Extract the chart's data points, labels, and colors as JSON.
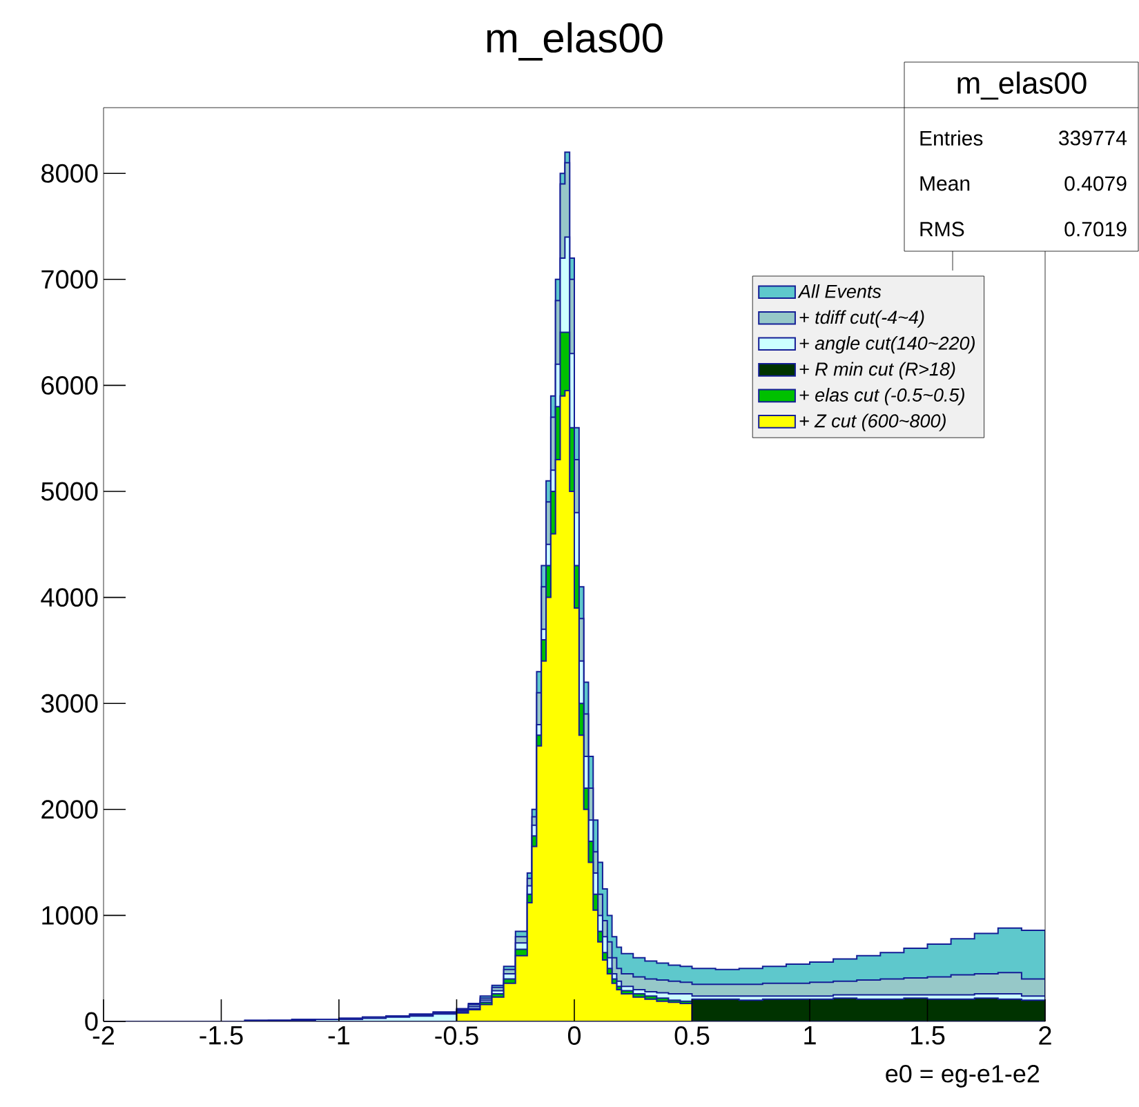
{
  "chart_data": {
    "type": "histogram",
    "title": "m_elas00",
    "xlabel": "e0 = eg-e1-e2",
    "bins": [
      -2,
      -1.9,
      -1.8,
      -1.7,
      -1.6,
      -1.5,
      -1.4,
      -1.3,
      -1.2,
      -1.1,
      -1,
      -0.9,
      -0.8,
      -0.7,
      -0.6,
      -0.5,
      -0.45,
      -0.4,
      -0.35,
      -0.3,
      -0.25,
      -0.2,
      -0.18,
      -0.16,
      -0.14,
      -0.12,
      -0.1,
      -0.08,
      -0.06,
      -0.04,
      -0.02,
      0,
      0.02,
      0.04,
      0.06,
      0.08,
      0.1,
      0.12,
      0.14,
      0.16,
      0.18,
      0.2,
      0.25,
      0.3,
      0.35,
      0.4,
      0.45,
      0.5,
      0.6,
      0.7,
      0.8,
      0.9,
      1,
      1.1,
      1.2,
      1.3,
      1.4,
      1.5,
      1.6,
      1.7,
      1.8,
      1.9,
      2
    ],
    "series": [
      {
        "name": "All Events",
        "color": "#5ec8cc",
        "values": [
          0,
          0,
          0,
          0,
          0,
          0,
          10,
          10,
          20,
          20,
          30,
          40,
          50,
          70,
          90,
          120,
          170,
          240,
          340,
          520,
          850,
          1400,
          2000,
          3300,
          4300,
          5100,
          5900,
          7000,
          8000,
          8200,
          7200,
          5600,
          4100,
          3200,
          2500,
          1900,
          1500,
          1250,
          1000,
          800,
          700,
          640,
          600,
          570,
          550,
          530,
          520,
          500,
          490,
          500,
          520,
          540,
          560,
          590,
          620,
          650,
          690,
          730,
          780,
          830,
          880,
          860
        ]
      },
      {
        "name": "+ tdiff cut(-4~4)",
        "color": "#96c8c8",
        "values": [
          0,
          0,
          0,
          0,
          0,
          0,
          10,
          10,
          20,
          20,
          30,
          40,
          50,
          60,
          80,
          110,
          160,
          220,
          320,
          490,
          800,
          1350,
          1930,
          3100,
          4100,
          4900,
          5700,
          6800,
          7900,
          8100,
          7000,
          5300,
          3800,
          2900,
          2200,
          1600,
          1200,
          950,
          750,
          600,
          500,
          450,
          420,
          400,
          390,
          380,
          370,
          350,
          350,
          350,
          360,
          360,
          370,
          380,
          390,
          400,
          410,
          420,
          440,
          450,
          460,
          400
        ]
      },
      {
        "name": "+ angle cut(140~220)",
        "color": "#ccffff",
        "values": [
          0,
          0,
          0,
          0,
          0,
          0,
          0,
          10,
          10,
          20,
          20,
          30,
          40,
          50,
          70,
          100,
          140,
          200,
          290,
          450,
          740,
          1280,
          1850,
          2800,
          3700,
          4500,
          5200,
          6200,
          7200,
          7400,
          6300,
          4800,
          3400,
          2500,
          1900,
          1400,
          1000,
          800,
          600,
          450,
          380,
          330,
          300,
          280,
          270,
          260,
          260,
          240,
          240,
          240,
          240,
          240,
          240,
          250,
          250,
          250,
          250,
          250,
          250,
          260,
          260,
          240
        ]
      },
      {
        "name": "+ R min cut (R>18)",
        "color": "#003300",
        "values": [
          0,
          0,
          0,
          0,
          0,
          0,
          0,
          0,
          0,
          0,
          0,
          0,
          0,
          0,
          0,
          0,
          0,
          0,
          0,
          0,
          0,
          0,
          0,
          0,
          0,
          0,
          0,
          0,
          0,
          0,
          0,
          0,
          0,
          0,
          0,
          0,
          0,
          0,
          0,
          0,
          0,
          0,
          0,
          0,
          0,
          0,
          0,
          210,
          210,
          200,
          210,
          210,
          210,
          220,
          210,
          210,
          220,
          210,
          210,
          220,
          210,
          200
        ]
      },
      {
        "name": "+ elas cut (-0.5~0.5)",
        "color": "#00c000",
        "values": [
          0,
          0,
          0,
          0,
          0,
          0,
          0,
          0,
          0,
          0,
          0,
          0,
          0,
          0,
          0,
          90,
          120,
          180,
          260,
          400,
          680,
          1200,
          1750,
          2700,
          3600,
          4300,
          5000,
          5800,
          6500,
          6500,
          5600,
          4300,
          3000,
          2200,
          1700,
          1200,
          850,
          650,
          500,
          400,
          330,
          290,
          260,
          240,
          220,
          200,
          190,
          0,
          0,
          0,
          0,
          0,
          0,
          0,
          0,
          0,
          0,
          0,
          0,
          0,
          0,
          0
        ]
      },
      {
        "name": "+ Z cut (600~800)",
        "color": "#ffff00",
        "values": [
          0,
          0,
          0,
          0,
          0,
          0,
          0,
          0,
          0,
          0,
          0,
          0,
          0,
          0,
          0,
          80,
          110,
          160,
          230,
          360,
          620,
          1120,
          1650,
          2600,
          3400,
          4000,
          4600,
          5300,
          5900,
          5950,
          5000,
          3900,
          2700,
          2000,
          1500,
          1050,
          750,
          580,
          450,
          360,
          300,
          260,
          230,
          210,
          190,
          180,
          170,
          0,
          0,
          0,
          0,
          0,
          0,
          0,
          0,
          0,
          0,
          0,
          0,
          0,
          0,
          0
        ]
      }
    ],
    "xlim": [
      -2,
      2
    ],
    "ylim": [
      0,
      8620
    ],
    "xticks": [
      -2,
      -1.5,
      -1,
      -0.5,
      0,
      0.5,
      1,
      1.5,
      2
    ],
    "yticks": [
      0,
      1000,
      2000,
      3000,
      4000,
      5000,
      6000,
      7000,
      8000
    ],
    "legend": "right",
    "annotations": [
      "m_elas00",
      "Entries",
      "339774",
      "Mean",
      "0.4079",
      "RMS",
      "0.7019"
    ]
  }
}
